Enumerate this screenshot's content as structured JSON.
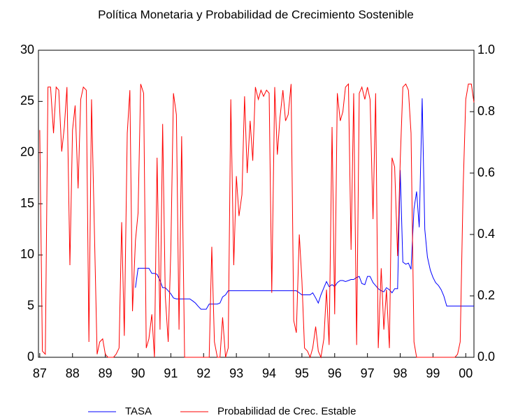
{
  "chart_data": {
    "type": "line",
    "title": "Política Monetaria y Probabilidad de Crecimiento Sostenible",
    "x": [
      87,
      87.08,
      87.17,
      87.25,
      87.33,
      87.42,
      87.5,
      87.58,
      87.67,
      87.75,
      87.83,
      87.92,
      88,
      88.08,
      88.17,
      88.25,
      88.33,
      88.42,
      88.5,
      88.58,
      88.67,
      88.75,
      88.83,
      88.92,
      89,
      89.08,
      89.17,
      89.25,
      89.33,
      89.42,
      89.5,
      89.58,
      89.67,
      89.75,
      89.83,
      89.92,
      90,
      90.08,
      90.17,
      90.25,
      90.33,
      90.42,
      90.5,
      90.58,
      90.67,
      90.75,
      90.83,
      90.92,
      91,
      91.08,
      91.17,
      91.25,
      91.33,
      91.42,
      91.5,
      91.58,
      91.67,
      91.75,
      91.83,
      91.92,
      92,
      92.08,
      92.17,
      92.25,
      92.33,
      92.42,
      92.5,
      92.58,
      92.67,
      92.75,
      92.83,
      92.92,
      93,
      93.08,
      93.17,
      93.25,
      93.33,
      93.42,
      93.5,
      93.58,
      93.67,
      93.75,
      93.83,
      93.92,
      94,
      94.08,
      94.17,
      94.25,
      94.33,
      94.42,
      94.5,
      94.58,
      94.67,
      94.75,
      94.83,
      94.92,
      95,
      95.08,
      95.17,
      95.25,
      95.33,
      95.42,
      95.5,
      95.58,
      95.67,
      95.75,
      95.83,
      95.92,
      96,
      96.08,
      96.17,
      96.25,
      96.33,
      96.42,
      96.5,
      96.58,
      96.67,
      96.75,
      96.83,
      96.92,
      97,
      97.08,
      97.17,
      97.25,
      97.33,
      97.42,
      97.5,
      97.58,
      97.67,
      97.75,
      97.83,
      97.92,
      98,
      98.08,
      98.17,
      98.25,
      98.33,
      98.42,
      98.5,
      98.58,
      98.67,
      98.75,
      98.83,
      98.92,
      99,
      99.08,
      99.17,
      99.25,
      99.33,
      99.42,
      99.5,
      99.58,
      99.67,
      99.75,
      99.83,
      99.92,
      100,
      100.08,
      100.17,
      100.25
    ],
    "series": [
      {
        "name": "TASA",
        "color": "#0000ff",
        "axis": "y",
        "values": [
          null,
          null,
          null,
          null,
          null,
          null,
          null,
          null,
          null,
          null,
          null,
          null,
          null,
          null,
          null,
          null,
          null,
          null,
          null,
          null,
          null,
          null,
          null,
          null,
          null,
          null,
          null,
          null,
          null,
          null,
          null,
          null,
          null,
          null,
          null,
          6.8,
          8.7,
          8.7,
          8.7,
          8.7,
          8.7,
          8.2,
          8.2,
          8.1,
          7.5,
          6.8,
          6.8,
          6.5,
          6.2,
          5.8,
          5.7,
          5.7,
          5.7,
          5.7,
          5.7,
          5.7,
          5.5,
          5.3,
          5.0,
          4.7,
          4.7,
          4.7,
          5.2,
          5.2,
          5.2,
          5.2,
          5.3,
          5.9,
          6.1,
          6.5,
          6.5,
          6.5,
          6.5,
          6.5,
          6.5,
          6.5,
          6.5,
          6.5,
          6.5,
          6.5,
          6.5,
          6.5,
          6.5,
          6.5,
          6.5,
          6.5,
          6.5,
          6.5,
          6.5,
          6.5,
          6.5,
          6.5,
          6.5,
          6.5,
          6.5,
          6.3,
          6.1,
          6.1,
          6.1,
          6.1,
          6.3,
          5.8,
          5.3,
          6.1,
          6.8,
          7.4,
          6.9,
          7.1,
          6.9,
          7.3,
          7.5,
          7.5,
          7.4,
          7.5,
          7.6,
          7.6,
          7.8,
          7.9,
          7.2,
          7.1,
          7.9,
          7.9,
          7.3,
          7.0,
          6.7,
          6.5,
          6.4,
          6.8,
          6.6,
          6.3,
          6.7,
          6.7,
          18.3,
          9.3,
          9.1,
          9.2,
          8.6,
          14.5,
          16.2,
          12.7,
          25.3,
          12.5,
          9.8,
          8.5,
          7.8,
          7.3,
          7.0,
          6.6,
          6.0,
          5.0,
          5.0,
          5.0,
          5.0,
          5.0,
          5.0,
          5.0,
          5.0,
          5.0,
          5.0,
          5.0
        ]
      },
      {
        "name": "Probabilidad de Crec. Estable",
        "color": "#ff0000",
        "axis": "y2",
        "values": [
          0.74,
          0.02,
          0.01,
          0.88,
          0.88,
          0.73,
          0.88,
          0.87,
          0.67,
          0.75,
          0.88,
          0.3,
          0.74,
          0.82,
          0.55,
          0.84,
          0.88,
          0.87,
          0.05,
          0.84,
          0.4,
          0.01,
          0.05,
          0.06,
          0.01,
          0.0,
          0.0,
          0.0,
          0.01,
          0.03,
          0.44,
          0.07,
          0.73,
          0.87,
          0.15,
          0.38,
          0.47,
          0.89,
          0.86,
          0.03,
          0.06,
          0.14,
          0.0,
          0.65,
          0.09,
          0.76,
          0.2,
          0.05,
          0.35,
          0.86,
          0.79,
          0.09,
          0.72,
          0.0,
          0.0,
          0.0,
          0.0,
          0.0,
          0.0,
          0.0,
          0.0,
          0.0,
          0.0,
          0.36,
          0.05,
          0.0,
          0.0,
          0.13,
          0.0,
          0.03,
          0.84,
          0.3,
          0.59,
          0.46,
          0.53,
          0.85,
          0.6,
          0.77,
          0.64,
          0.88,
          0.84,
          0.87,
          0.85,
          0.87,
          0.86,
          0.21,
          0.88,
          0.66,
          0.78,
          0.87,
          0.77,
          0.79,
          0.89,
          0.12,
          0.08,
          0.4,
          0.25,
          0.03,
          0.02,
          0.0,
          0.03,
          0.1,
          0.02,
          0.0,
          0.06,
          0.22,
          0.04,
          0.75,
          0.14,
          0.86,
          0.77,
          0.8,
          0.88,
          0.89,
          0.35,
          0.86,
          0.04,
          0.86,
          0.88,
          0.84,
          0.88,
          0.84,
          0.45,
          0.86,
          0.03,
          0.29,
          0.09,
          0.22,
          0.03,
          0.65,
          0.62,
          0.33,
          0.64,
          0.88,
          0.89,
          0.87,
          0.73,
          0.05,
          0.0,
          0.0,
          0.0,
          0.0,
          0.0,
          0.0,
          0.0,
          0.0,
          0.0,
          0.0,
          0.0,
          0.0,
          0.0,
          0.0,
          0.0,
          0.01,
          0.05,
          0.55,
          0.84,
          0.89,
          0.89,
          0.83
        ]
      }
    ],
    "xlim": [
      86.96,
      100.25
    ],
    "xticks": [
      87,
      88,
      89,
      90,
      91,
      92,
      93,
      94,
      95,
      96,
      97,
      98,
      99,
      {
        "value": 100,
        "label": "00"
      }
    ],
    "ylim": [
      0,
      30
    ],
    "yticks": [
      0,
      5,
      10,
      15,
      20,
      25,
      30
    ],
    "y2lim": [
      0,
      1
    ],
    "y2ticks": [
      {
        "value": 0,
        "label": "0.0"
      },
      0.2,
      0.4,
      0.6,
      0.8,
      {
        "value": 1,
        "label": "1.0"
      }
    ],
    "legend": "bottom"
  }
}
